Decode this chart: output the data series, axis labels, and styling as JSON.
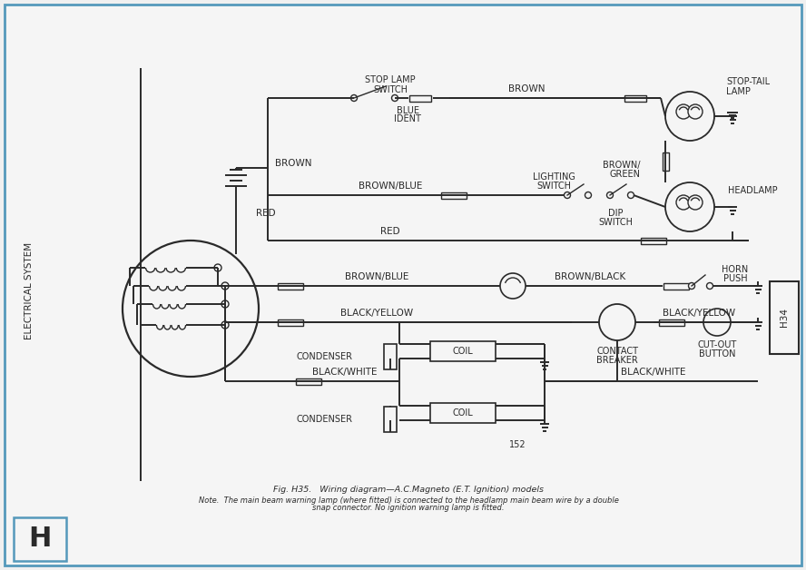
{
  "title": "Fig. H35.   Wiring diagram—A.C.Magneto (E.T. Ignition) models",
  "note_line1": "Note.  The main beam warning lamp (where fitted) is connected to the headlamp main beam wire by a double",
  "note_line2": "snap connector. No ignition warning lamp is fitted.",
  "side_label": "ELECTRICAL SYSTEM",
  "page_num": "152",
  "bg_color": "#f0f0f0",
  "inner_bg": "#f5f5f5",
  "line_color": "#2a2a2a",
  "lw": 1.4,
  "border_color": "#5599bb"
}
